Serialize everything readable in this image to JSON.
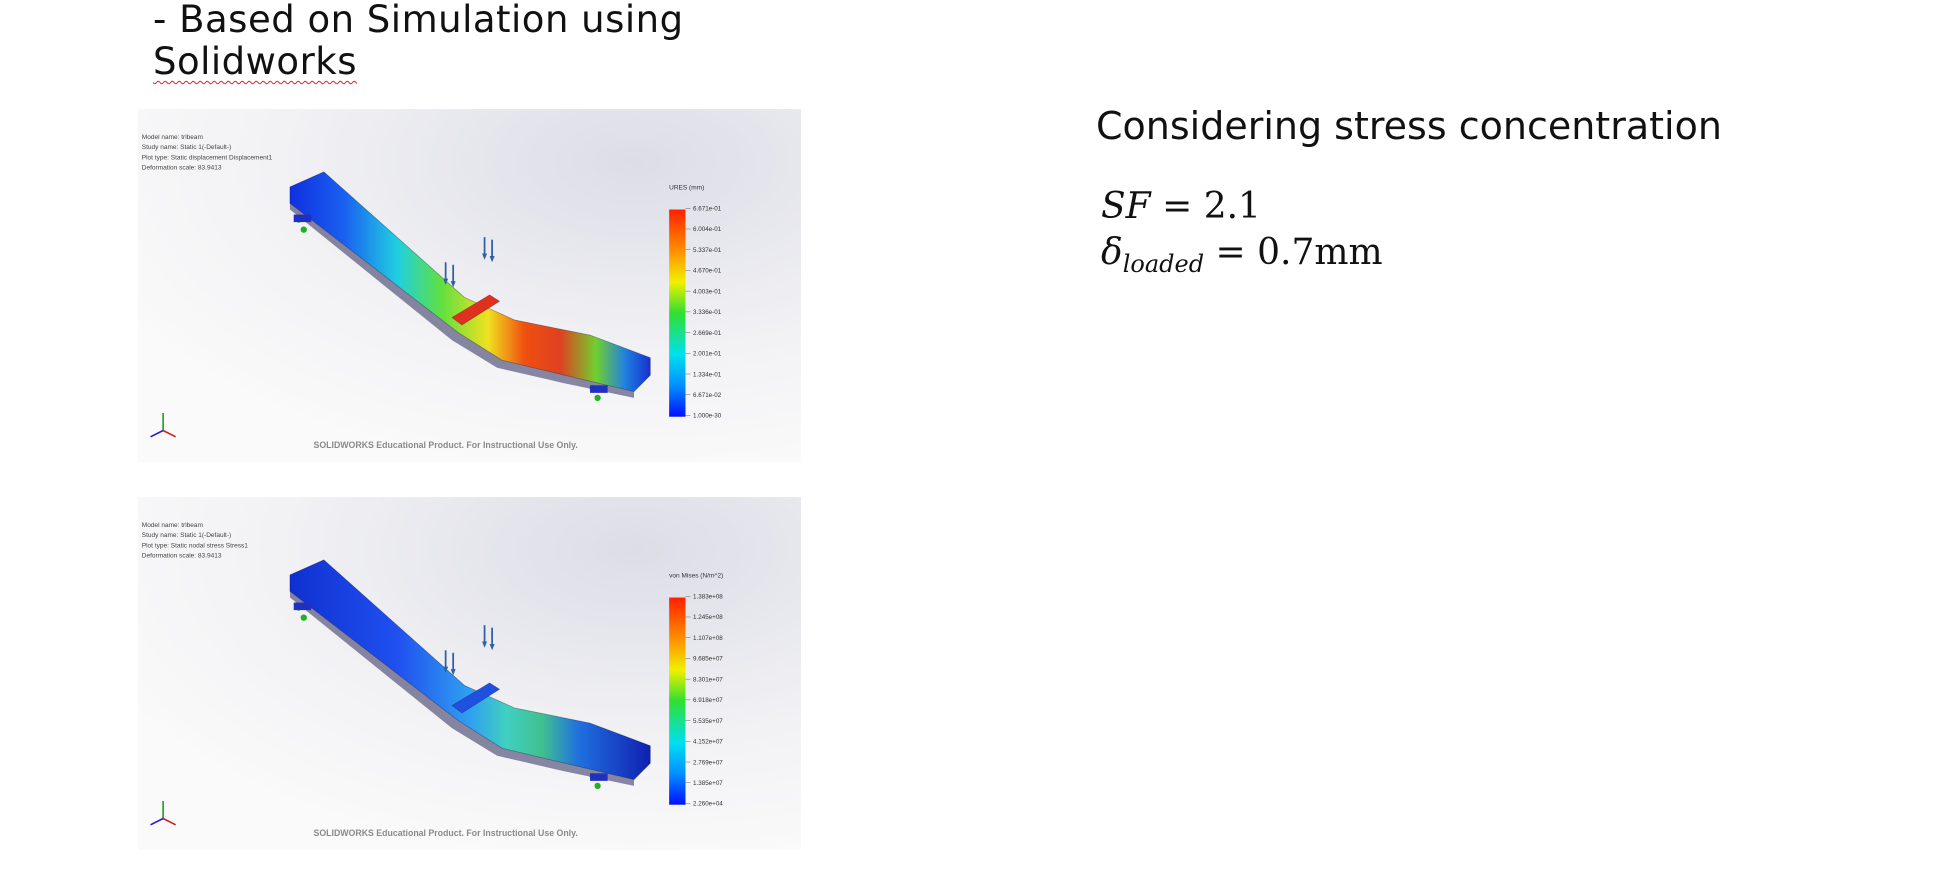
{
  "heading": {
    "lines": [
      "- Based on Simulation using",
      "Solidworks"
    ]
  },
  "simulations": [
    {
      "info": [
        "Model name: trlbeam",
        "Study name: Static 1(-Default-)",
        "Plot type: Static displacement Displacement1",
        "Deformation scale: 83.9413"
      ],
      "legend_title": "URES (mm)",
      "legend_values": [
        "6.671e-01",
        "6.004e-01",
        "5.337e-01",
        "4.670e-01",
        "4.003e-01",
        "3.336e-01",
        "2.669e-01",
        "2.001e-01",
        "1.334e-01",
        "6.671e-02",
        "1.000e-30"
      ],
      "watermark": "SOLIDWORKS Educational Product. For Instructional Use Only."
    },
    {
      "info": [
        "Model name: trlbeam",
        "Study name: Static 1(-Default-)",
        "Plot type: Static nodal stress Stress1",
        "Deformation scale: 83.9413"
      ],
      "legend_title": "von Mises (N/m^2)",
      "legend_values": [
        "1.383e+08",
        "1.245e+08",
        "1.107e+08",
        "9.685e+07",
        "8.301e+07",
        "6.918e+07",
        "5.535e+07",
        "4.152e+07",
        "2.769e+07",
        "1.385e+07",
        "2.260e+04"
      ],
      "watermark": "SOLIDWORKS Educational Product. For Instructional Use Only."
    }
  ],
  "notes": {
    "title": "Considering stress concentration",
    "equations": [
      {
        "lhs": "SF",
        "rhs": "= 2.1"
      },
      {
        "lhs": "δ",
        "subscript": "loaded",
        "rhs": "= 0.7mm"
      }
    ]
  }
}
